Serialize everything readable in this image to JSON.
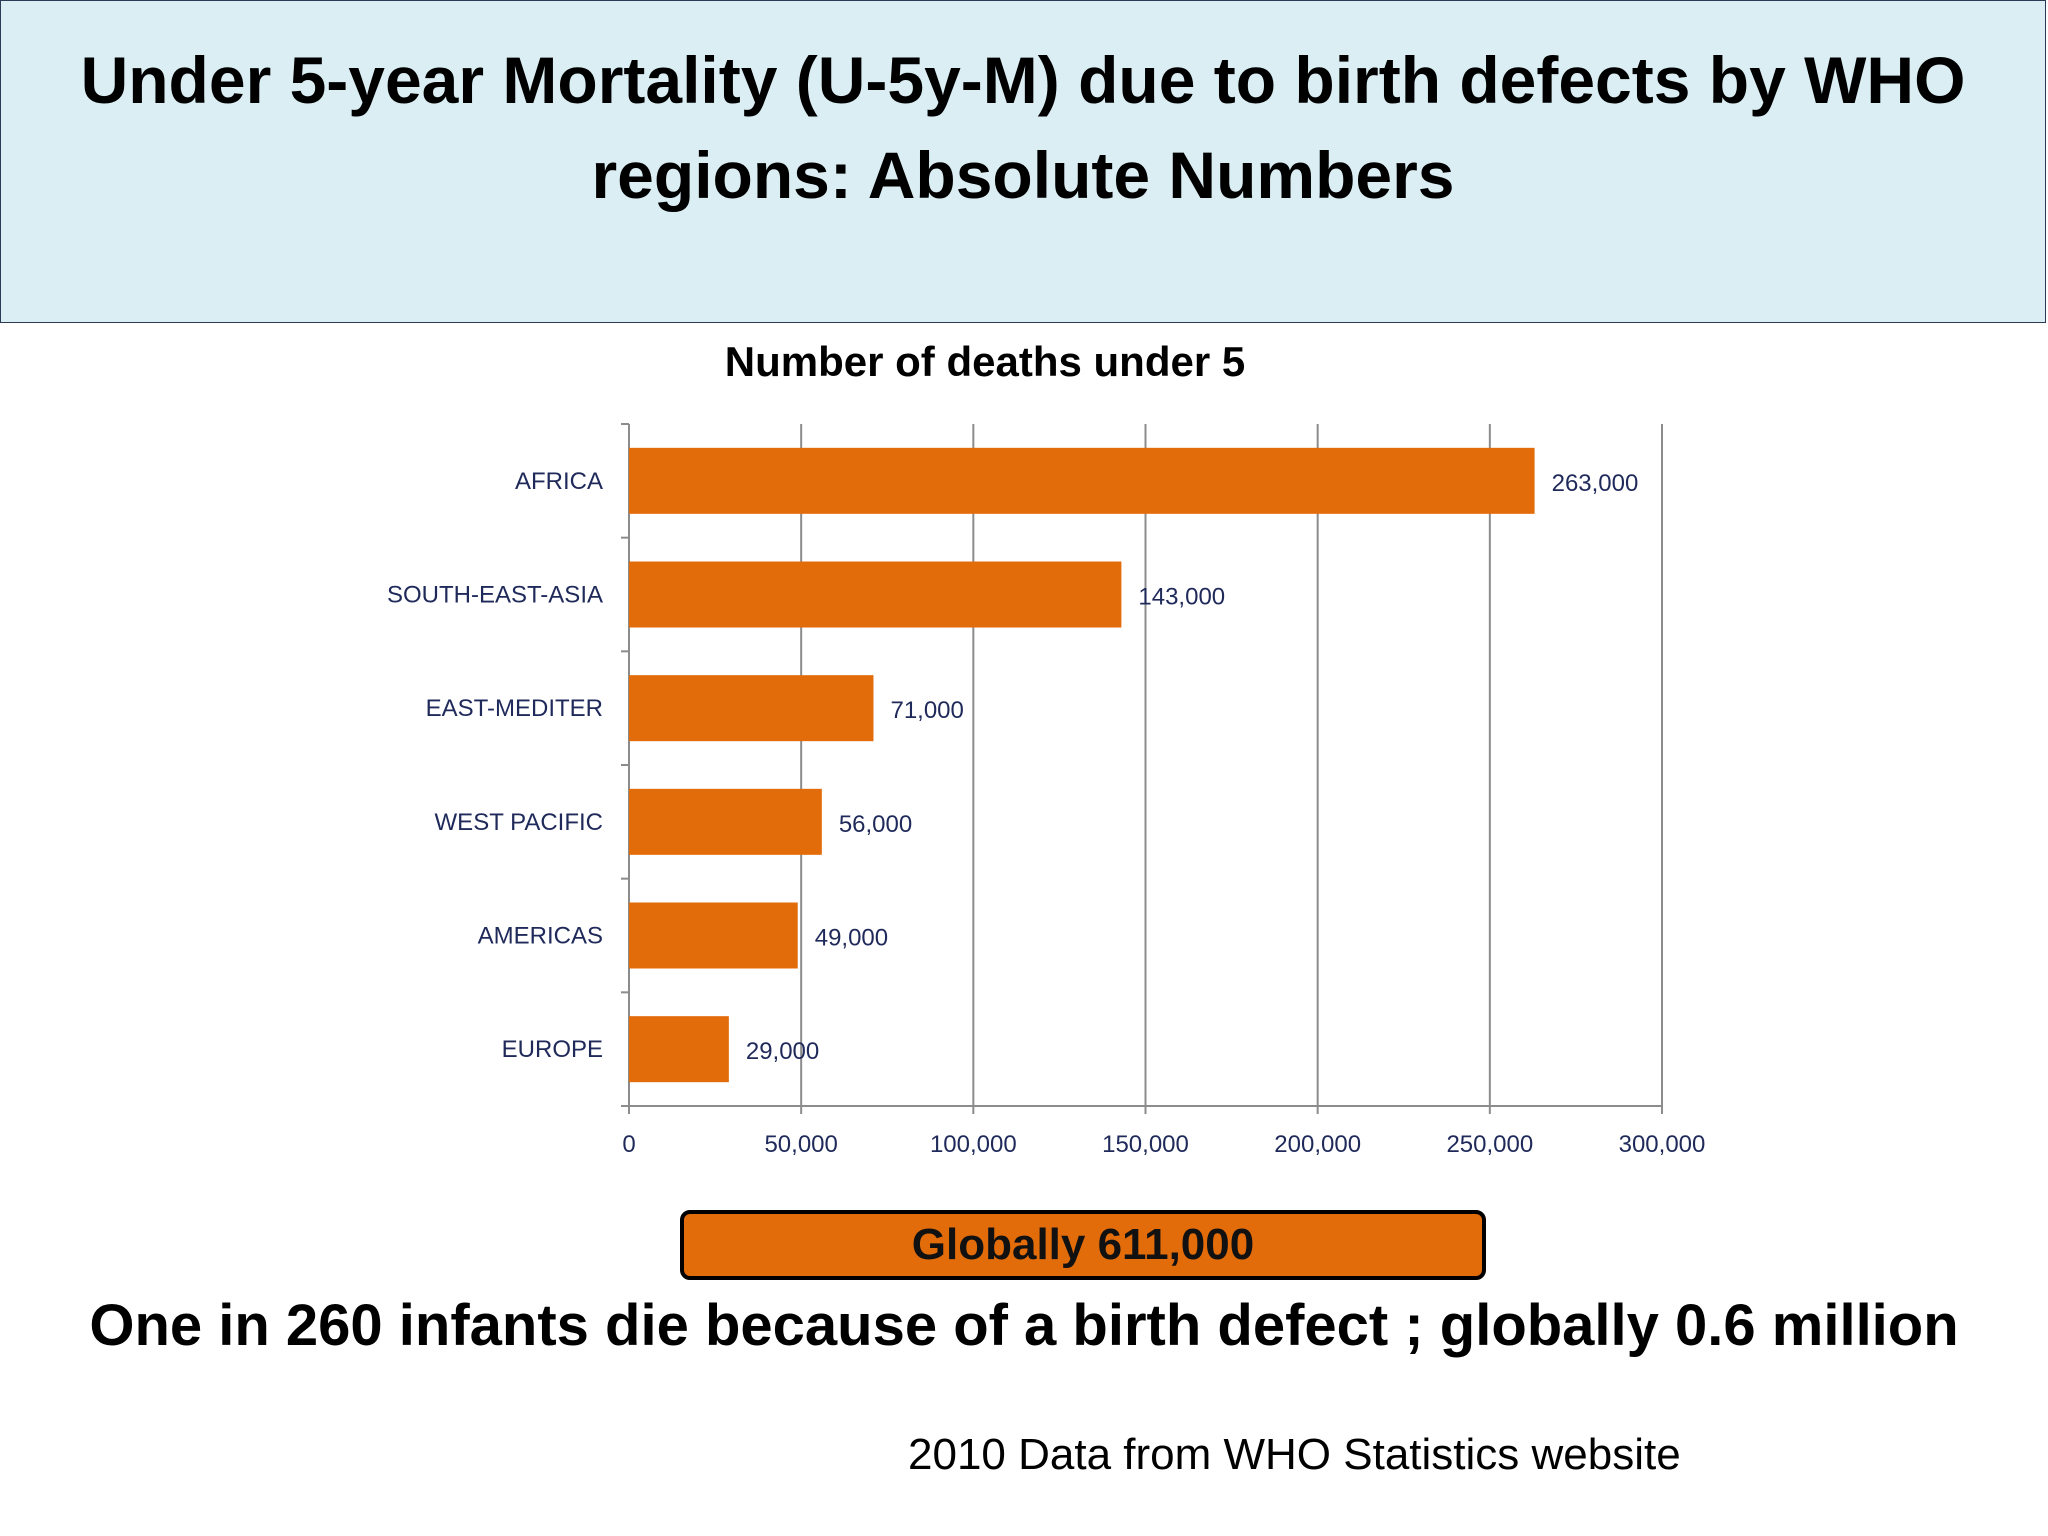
{
  "slide": {
    "title": "Under 5-year Mortality (U-5y-M) due to birth defects by WHO regions: Absolute Numbers",
    "global_box": "Globally 611,000",
    "summary": "One in 260 infants die because of a birth defect ; globally 0.6 million",
    "source": "2010 Data from WHO Statistics website"
  },
  "colors": {
    "bar": "#e36c0a",
    "title_bg": "#daeef3",
    "axis_text": "#1f2a5a",
    "grid": "#8c8c8c"
  },
  "chart_data": {
    "type": "bar",
    "orientation": "horizontal",
    "title": "Number of deaths under 5",
    "categories": [
      "AFRICA",
      "SOUTH-EAST-ASIA",
      "EAST-MEDITER",
      "WEST PACIFIC",
      "AMERICAS",
      "EUROPE"
    ],
    "values": [
      263000,
      143000,
      71000,
      56000,
      49000,
      29000
    ],
    "value_labels": [
      "263,000",
      "143,000",
      "71,000",
      "56,000",
      "49,000",
      "29,000"
    ],
    "xlim": [
      0,
      300000
    ],
    "x_ticks": [
      0,
      50000,
      100000,
      150000,
      200000,
      250000,
      300000
    ],
    "x_tick_labels": [
      "0",
      "50,000",
      "100,000",
      "150,000",
      "200,000",
      "250,000",
      "300,000"
    ],
    "grid": true,
    "xlabel": "",
    "ylabel": ""
  }
}
